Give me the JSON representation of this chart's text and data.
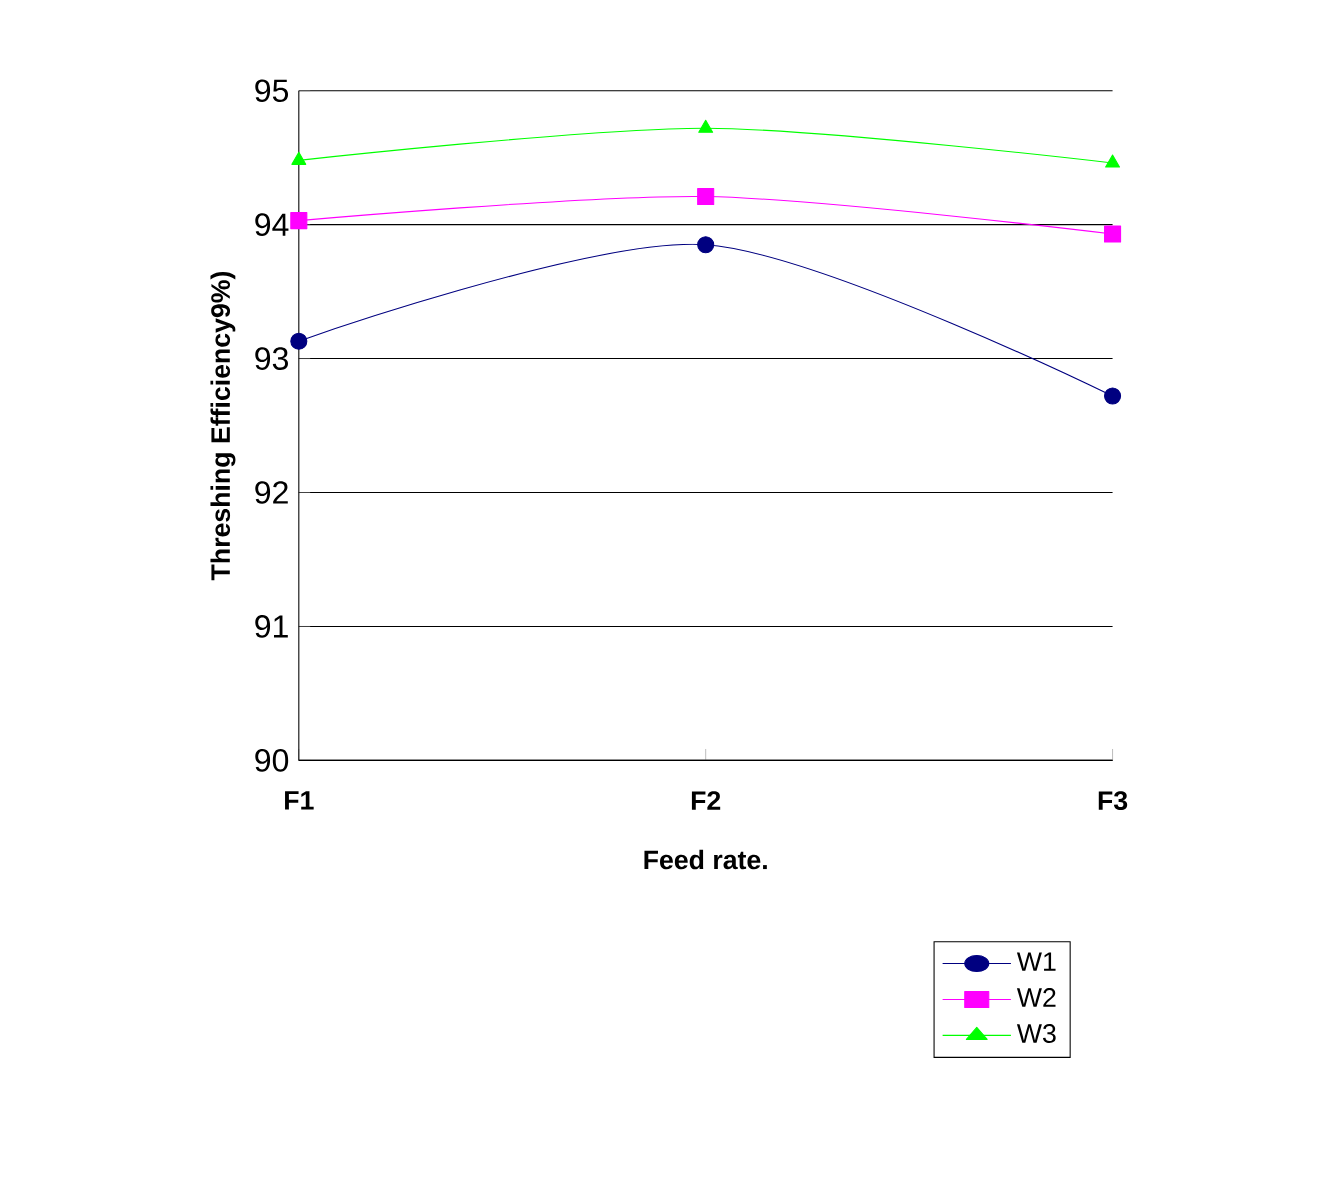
{
  "chart_data": {
    "type": "line",
    "xlabel": "Feed rate.",
    "ylabel": "Threshing Efficiency9%)",
    "categories": [
      "F1",
      "F2",
      "F3"
    ],
    "series": [
      {
        "name": "W1",
        "color": "#000080",
        "marker": "circle",
        "values": [
          93.13,
          93.85,
          92.72
        ]
      },
      {
        "name": "W2",
        "color": "#ff00ff",
        "marker": "square",
        "values": [
          94.03,
          94.21,
          93.93
        ]
      },
      {
        "name": "W3",
        "color": "#00ff00",
        "marker": "triangle",
        "values": [
          94.48,
          94.72,
          94.46
        ]
      }
    ],
    "ylim": [
      90,
      95
    ],
    "yticks": [
      90,
      91,
      92,
      93,
      94,
      95
    ],
    "grid": "y",
    "legend": "bottom right",
    "line_style": "solid"
  }
}
